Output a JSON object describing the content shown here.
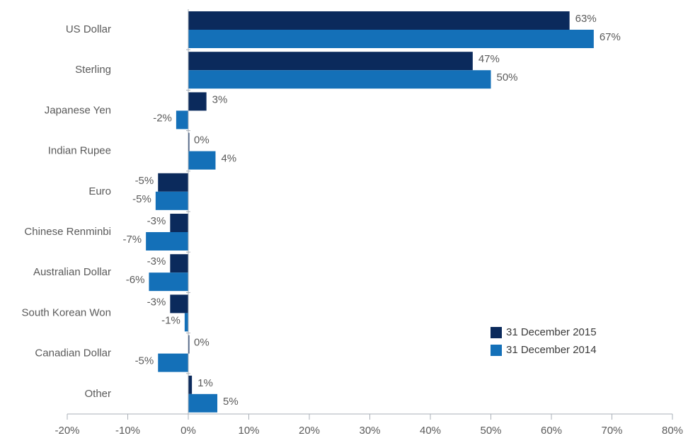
{
  "chart_data": {
    "type": "bar",
    "orientation": "horizontal",
    "categories": [
      "US Dollar",
      "Sterling",
      "Japanese Yen",
      "Indian Rupee",
      "Euro",
      "Chinese Renminbi",
      "Australian Dollar",
      "South Korean Won",
      "Canadian Dollar",
      "Other"
    ],
    "series": [
      {
        "name": "31 December 2015",
        "color": "#0b2a5c",
        "values": [
          63,
          47,
          3,
          0,
          -5,
          -3,
          -3,
          -3,
          0,
          0.6
        ],
        "labels": [
          "63%",
          "47%",
          "3%",
          "0%",
          "-5%",
          "-3%",
          "-3%",
          "-3%",
          "0%",
          "1%"
        ]
      },
      {
        "name": "31 December 2014",
        "color": "#1470b8",
        "values": [
          67,
          50,
          -2,
          4.5,
          -5.4,
          -7,
          -6.5,
          -0.6,
          -5,
          4.8
        ],
        "labels": [
          "67%",
          "50%",
          "-2%",
          "4%",
          "-5%",
          "-7%",
          "-6%",
          "-1%",
          "-5%",
          "5%"
        ]
      }
    ],
    "xlim": [
      -20,
      80
    ],
    "xticks": [
      -20,
      -10,
      0,
      10,
      20,
      30,
      40,
      50,
      60,
      70,
      80
    ],
    "xtick_labels": [
      "-20%",
      "-10%",
      "0%",
      "10%",
      "20%",
      "30%",
      "40%",
      "50%",
      "60%",
      "70%",
      "80%"
    ],
    "grid": false,
    "legend_position": "lower-right"
  }
}
